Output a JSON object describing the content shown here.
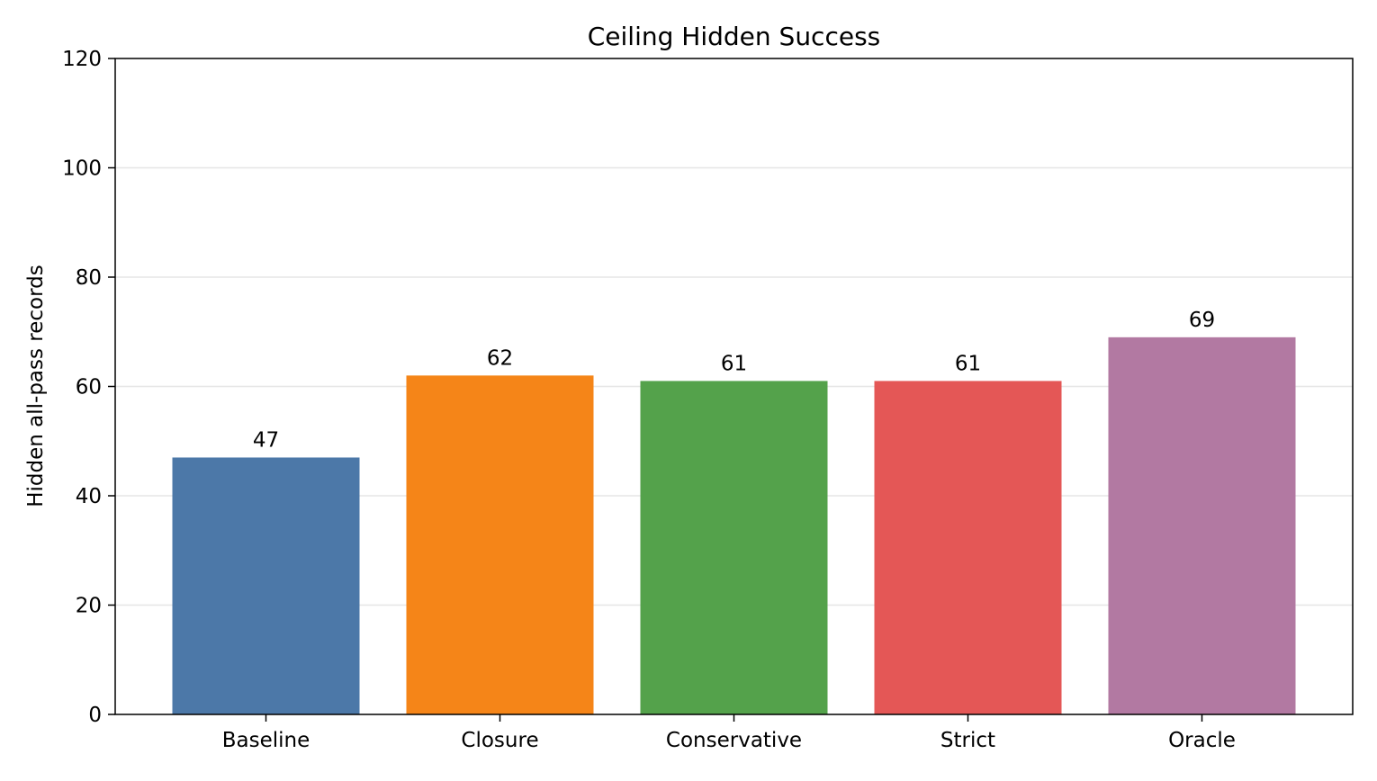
{
  "chart_data": {
    "type": "bar",
    "title": "Ceiling Hidden Success",
    "xlabel": "",
    "ylabel": "Hidden all-pass records",
    "categories": [
      "Baseline",
      "Closure",
      "Conservative",
      "Strict",
      "Oracle"
    ],
    "values": [
      47,
      62,
      61,
      61,
      69
    ],
    "data_labels": [
      "47",
      "62",
      "61",
      "61",
      "69"
    ],
    "colors": [
      "#4c78a8",
      "#f58518",
      "#54a24b",
      "#e45756",
      "#b279a2"
    ],
    "ylim": [
      0,
      120
    ],
    "yticks": [
      0,
      20,
      40,
      60,
      80,
      100,
      120
    ],
    "ytick_labels": [
      "0",
      "20",
      "40",
      "60",
      "80",
      "100",
      "120"
    ],
    "grid": "horizontal",
    "legend": "none"
  }
}
